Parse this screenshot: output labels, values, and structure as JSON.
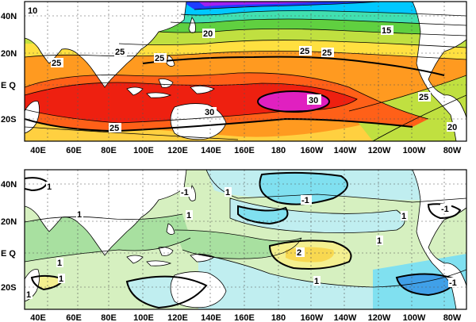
{
  "maps": [
    {
      "id": "top",
      "lat_labels": [
        "40N",
        "20N",
        "E Q",
        "20S"
      ],
      "lon_labels": [
        "40E",
        "60E",
        "80E",
        "100E",
        "120E",
        "140E",
        "160E",
        "180",
        "160W",
        "140W",
        "120W",
        "100W",
        "80W"
      ],
      "contour_labels": [
        "10",
        "20",
        "15",
        "25",
        "25",
        "25",
        "25",
        "25",
        "30",
        "25",
        "25",
        "30",
        "20"
      ]
    },
    {
      "id": "bottom",
      "lat_labels": [
        "40N",
        "20N",
        "E Q",
        "20S"
      ],
      "lon_labels": [
        "40E",
        "60E",
        "80E",
        "100E",
        "120E",
        "140E",
        "160E",
        "180",
        "160W",
        "140W",
        "120W",
        "100W",
        "80W"
      ],
      "contour_labels": [
        "1",
        "-1",
        "1",
        "-1",
        "1",
        "1",
        "1",
        "-1",
        "1",
        "2",
        "1",
        "1",
        "1",
        "1",
        "-1"
      ]
    }
  ],
  "colors": {
    "purple": "#a020f0",
    "blue": "#1e3cff",
    "cyan": "#00c8ff",
    "teal": "#40e0b0",
    "green": "#60d040",
    "yellow_green": "#c0e040",
    "yellow": "#ffe040",
    "orange": "#ff9a20",
    "orange_red": "#ff6018",
    "red": "#ee2010",
    "magenta": "#e020c0",
    "anom_pale_green": "#d6f0c0",
    "anom_green": "#a8e0a0",
    "anom_pale_cyan": "#c0eef0",
    "anom_cyan": "#80e0f0",
    "anom_blue": "#40a0e8",
    "anom_yellow": "#f4f090",
    "anom_deep_yellow": "#f8d850"
  }
}
